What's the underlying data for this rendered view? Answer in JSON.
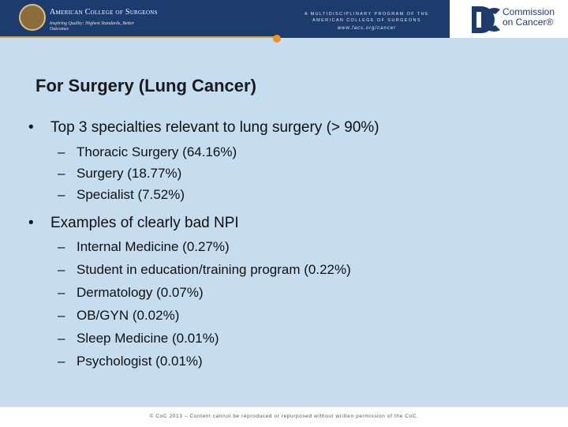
{
  "header": {
    "org_name": "American College of Surgeons",
    "tagline": "Inspiring Quality: Highest Standards, Better Outcomes",
    "program_line1": "A MULTIDISCIPLINARY PROGRAM OF THE",
    "program_line2": "AMERICAN COLLEGE OF SURGEONS",
    "url": "www.facs.org/cancer",
    "logo_line1": "Commission",
    "logo_line2": "on Cancer®"
  },
  "slide": {
    "title": "For Surgery (Lung Cancer)",
    "bullets": [
      {
        "text": "Top 3 specialties relevant to lung surgery (> 90%)",
        "subitems": [
          "Thoracic Surgery (64.16%)",
          "Surgery (18.77%)",
          "Specialist (7.52%)"
        ]
      },
      {
        "text": "Examples of clearly bad NPI",
        "subitems": [
          "Internal Medicine (0.27%)",
          "Student in education/training program (0.22%)",
          "Dermatology (0.07%)",
          "OB/GYN (0.02%)",
          "Sleep Medicine (0.01%)",
          "Psychologist (0.01%)"
        ]
      }
    ]
  },
  "footer": {
    "text": "© CoC 2013 – Content cannot be reproduced or repurposed without written permission of the CoC."
  }
}
